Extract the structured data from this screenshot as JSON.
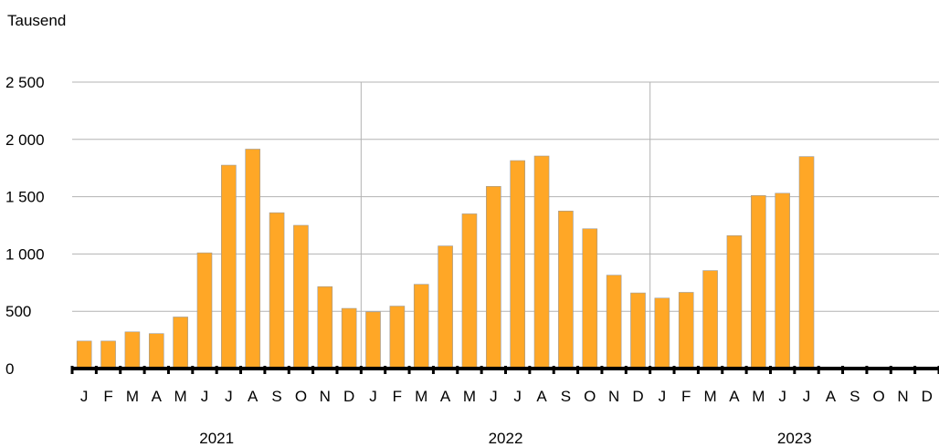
{
  "chart_data": {
    "type": "bar",
    "ylabel": "Tausend",
    "ylim": [
      0,
      2500
    ],
    "yticks": [
      0,
      500,
      1000,
      1500,
      2000,
      2500
    ],
    "ytick_labels": [
      "0",
      "500",
      "1 000",
      "1 500",
      "2 000",
      "2 500"
    ],
    "month_labels": [
      "J",
      "F",
      "M",
      "A",
      "M",
      "J",
      "J",
      "A",
      "S",
      "O",
      "N",
      "D",
      "J",
      "F",
      "M",
      "A",
      "M",
      "J",
      "J",
      "A",
      "S",
      "O",
      "N",
      "D",
      "J",
      "F",
      "M",
      "A",
      "M",
      "J",
      "J",
      "A",
      "S",
      "O",
      "N",
      "D"
    ],
    "years": [
      "2021",
      "2022",
      "2023"
    ],
    "series": [
      {
        "color": "#FFA726",
        "values": [
          240,
          240,
          320,
          305,
          450,
          1010,
          1775,
          1915,
          1360,
          1250,
          715,
          525,
          495,
          545,
          735,
          1070,
          1350,
          1590,
          1815,
          1855,
          1375,
          1220,
          815,
          660,
          615,
          665,
          855,
          1160,
          1510,
          1530,
          1850,
          null,
          null,
          null,
          null,
          null
        ]
      }
    ],
    "grid": true,
    "legend": "none"
  }
}
